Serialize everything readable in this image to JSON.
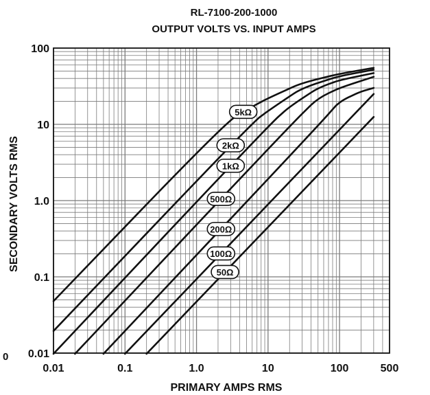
{
  "chart_data": {
    "type": "line",
    "title": "RL-7100-200-1000",
    "subtitle": "OUTPUT VOLTS VS. INPUT AMPS",
    "xlabel": "PRIMARY AMPS RMS",
    "ylabel": "SECONDARY VOLTS RMS",
    "x_scale": "log",
    "y_scale": "log",
    "xlim": [
      0.01,
      500
    ],
    "ylim": [
      0.01,
      100
    ],
    "grid": true,
    "legend": "inline labels on curves",
    "x_tick_labels": [
      "0.01",
      "0.1",
      "1.0",
      "10",
      "100",
      "500"
    ],
    "x_tick_values": [
      0.01,
      0.1,
      1,
      10,
      100,
      500
    ],
    "y_tick_labels": [
      "0.01",
      "0.1",
      "1.0",
      "10",
      "100"
    ],
    "y_tick_values": [
      0.01,
      0.1,
      1,
      10,
      100
    ],
    "stray_label": "0",
    "colors": {
      "line": "#111111",
      "grid": "#7a7a7a",
      "background": "#ffffff"
    },
    "series": [
      {
        "name": "5kΩ",
        "label_at": 4.5,
        "x": [
          0.01,
          2.5,
          5,
          10,
          30,
          100,
          300
        ],
        "y": [
          0.048,
          10.4,
          15.5,
          22,
          35,
          46,
          55
        ]
      },
      {
        "name": "2kΩ",
        "label_at": 3.0,
        "x": [
          0.01,
          6,
          10,
          30,
          100,
          300
        ],
        "y": [
          0.0195,
          10.5,
          15,
          30,
          43,
          52
        ]
      },
      {
        "name": "1kΩ",
        "label_at": 3.0,
        "x": [
          0.01,
          10,
          20,
          50,
          100,
          300
        ],
        "y": [
          0.0098,
          9.5,
          17,
          30,
          38,
          47
        ]
      },
      {
        "name": "500Ω",
        "label_at": 2.2,
        "x": [
          0.02,
          20,
          50,
          100,
          300
        ],
        "y": [
          0.0098,
          9.5,
          22,
          30,
          42
        ]
      },
      {
        "name": "200Ω",
        "label_at": 2.2,
        "x": [
          0.05,
          50,
          100,
          200,
          300
        ],
        "y": [
          0.0098,
          9.5,
          20,
          27,
          30
        ]
      },
      {
        "name": "100Ω",
        "label_at": 2.2,
        "x": [
          0.1,
          300
        ],
        "y": [
          0.0098,
          25
        ]
      },
      {
        "name": "50Ω",
        "label_at": 2.5,
        "x": [
          0.2,
          300
        ],
        "y": [
          0.0098,
          12.5
        ]
      }
    ]
  }
}
